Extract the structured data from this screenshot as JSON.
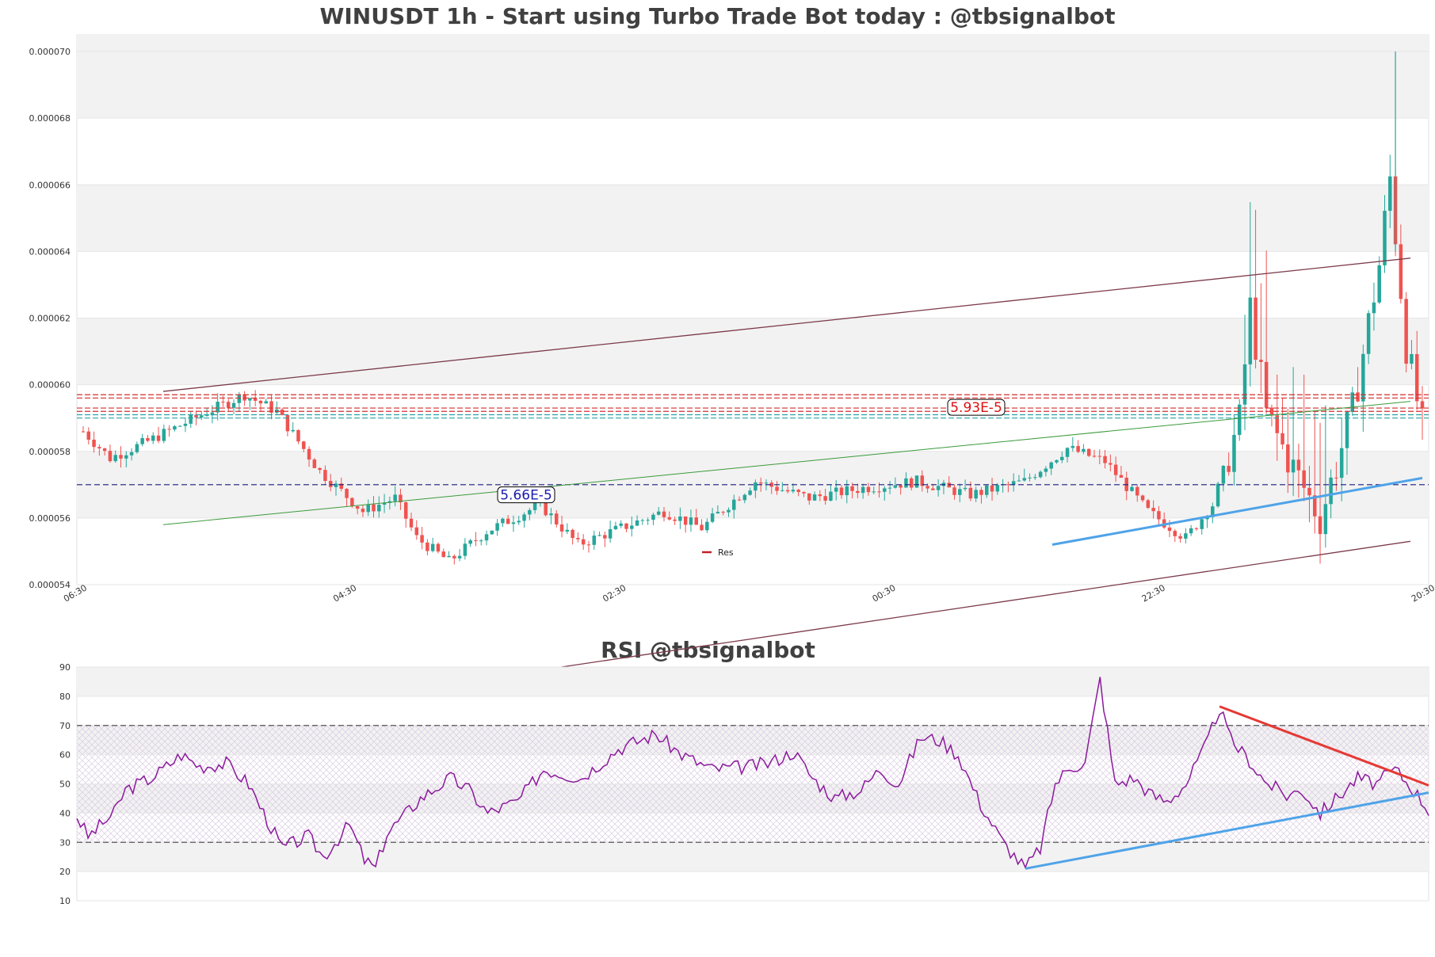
{
  "chart_data": [
    {
      "type": "candlestick",
      "title": "WINUSDT 1h - Start using Turbo Trade Bot today : @tbsignalbot",
      "ylim": [
        5.4e-05,
        7.05e-05
      ],
      "y_ticks": [
        "0.000054",
        "0.000056",
        "0.000058",
        "0.000060",
        "0.000062",
        "0.000064",
        "0.000066",
        "0.000068",
        "0.000070"
      ],
      "y_tick_values": [
        5.4e-05,
        5.6e-05,
        5.8e-05,
        6e-05,
        6.2e-05,
        6.4e-05,
        6.6e-05,
        6.8e-05,
        7e-05
      ],
      "x_ticks": [
        "06:30",
        "04:30",
        "02:30",
        "00:30",
        "22:30",
        "20:30"
      ],
      "candle_count": 250,
      "candles_sample_close": {
        "start": 5.86e-05,
        "low_1": 5.78e-05,
        "peak_1": 5.97e-05,
        "trough": 5.47e-05,
        "mid": 5.71e-05,
        "local_high": 5.81e-05,
        "low_2": 5.54e-05,
        "spike": 6.23e-05,
        "dip": 5.6e-05,
        "peak_2": 6.62e-05,
        "high_wick": 7e-05,
        "end": 5.87e-05
      },
      "legend": [
        {
          "label": "Res",
          "color": "#c0202a"
        }
      ],
      "annotations": [
        {
          "text": "5.93E-5",
          "price": 5.93e-05,
          "color": "#dd1111"
        },
        {
          "text": "5.66E-5",
          "price": 5.66e-05,
          "color": "#1a1ab0"
        }
      ],
      "horizontal_levels": {
        "resistance_red": [
          5.97e-05,
          5.96e-05,
          5.93e-05,
          5.92e-05
        ],
        "support_teal": [
          5.91e-05,
          5.9e-05
        ],
        "support_navy": 5.7e-05
      },
      "colors": {
        "up": "#26a69a",
        "down": "#ef5350",
        "channel": "#7b3a4a",
        "trend_green": "#3a9a3a",
        "trend_blue": "#4fa3e8"
      }
    },
    {
      "type": "line",
      "title": "RSI @tbsignalbot",
      "ylim": [
        10,
        90
      ],
      "y_ticks": [
        "10",
        "20",
        "30",
        "40",
        "50",
        "60",
        "70",
        "80",
        "90"
      ],
      "y_tick_values": [
        10,
        20,
        30,
        40,
        50,
        60,
        70,
        80,
        90
      ],
      "levels": {
        "overbought": 70,
        "oversold": 30
      },
      "series": [
        {
          "values_sample": {
            "start": 39,
            "min_1": 21,
            "peak": 67,
            "trough": 21,
            "spike": 86,
            "late_peak": 76,
            "end": 41
          }
        }
      ],
      "colors": {
        "line": "#8b1a9c",
        "trend_red": "#e53935",
        "trend_blue": "#4fa3e8"
      }
    }
  ]
}
